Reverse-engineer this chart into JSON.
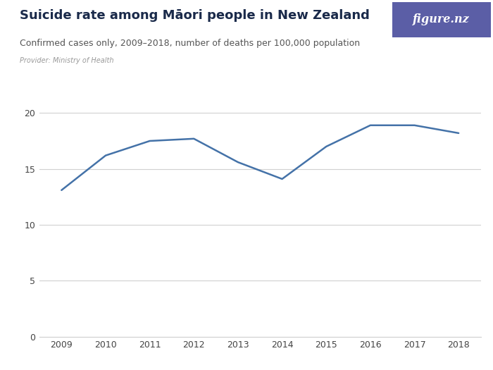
{
  "title": "Suicide rate among Māori people in New Zealand",
  "subtitle": "Confirmed cases only, 2009–2018, number of deaths per 100,000 population",
  "provider": "Provider: Ministry of Health",
  "years": [
    2009,
    2010,
    2011,
    2012,
    2013,
    2014,
    2015,
    2016,
    2017,
    2018
  ],
  "values": [
    13.1,
    16.2,
    17.5,
    17.7,
    15.6,
    14.1,
    17.0,
    18.9,
    18.9,
    18.2
  ],
  "line_color": "#4472a8",
  "background_color": "#ffffff",
  "grid_color": "#d0d0d0",
  "yticks": [
    0,
    5,
    10,
    15,
    20
  ],
  "ylim": [
    0,
    21.5
  ],
  "xlim": [
    2008.5,
    2018.5
  ],
  "logo_bg_color": "#5b5ea6",
  "logo_text": "figure.nz",
  "title_fontsize": 13,
  "subtitle_fontsize": 9,
  "provider_fontsize": 7,
  "axis_fontsize": 9,
  "tick_color": "#444444",
  "title_color": "#1a2a4a",
  "subtitle_color": "#555555",
  "provider_color": "#999999"
}
